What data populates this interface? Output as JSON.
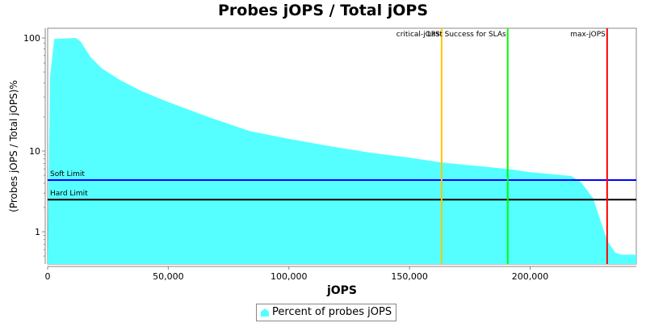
{
  "chart_data": {
    "type": "area",
    "title": "Probes jOPS / Total jOPS",
    "xlabel": "jOPS",
    "ylabel": "(Probes jOPS / Total jOPS)%",
    "y_scale": "log",
    "xlim": [
      0,
      244000
    ],
    "ylim": [
      0.47,
      130
    ],
    "x_ticks": [
      "0",
      "50,000",
      "100,000",
      "150,000",
      "200,000"
    ],
    "x_tick_values": [
      0,
      50000,
      100000,
      150000,
      200000
    ],
    "y_ticks": [
      "1",
      "10",
      "100"
    ],
    "y_tick_values": [
      1,
      10,
      100
    ],
    "grid": false,
    "legend_position": "bottom",
    "series": [
      {
        "name": "Percent of probes jOPS",
        "color": "#55ffff",
        "x": [
          0,
          1000,
          2700,
          11700,
          13700,
          17700,
          22400,
          30400,
          38800,
          50200,
          66600,
          83700,
          100000,
          117400,
          134100,
          149800,
          163300,
          190700,
          199400,
          217100,
          221100,
          226100,
          231900,
          235300,
          237900,
          244000
        ],
        "y": [
          0.47,
          45,
          98,
          100,
          93,
          68,
          54,
          42,
          34,
          27,
          20,
          15,
          12.8,
          11,
          9.5,
          8.3,
          7.2,
          6.0,
          5.5,
          4.9,
          4.1,
          2.6,
          0.78,
          0.55,
          0.52,
          0.52
        ]
      }
    ],
    "horizontal_markers": [
      {
        "label": "Soft Limit",
        "value": 4.37,
        "color": "#0000ff"
      },
      {
        "label": "Hard Limit",
        "value": 2.5,
        "color": "#000000"
      }
    ],
    "vertical_markers": [
      {
        "label": "critical-jOPS",
        "value": 163300,
        "color": "#ffc800"
      },
      {
        "label": "Last Success for SLAs",
        "value": 190700,
        "color": "#00ff00"
      },
      {
        "label": "max-jOPS",
        "value": 231900,
        "color": "#ff0000"
      }
    ]
  }
}
